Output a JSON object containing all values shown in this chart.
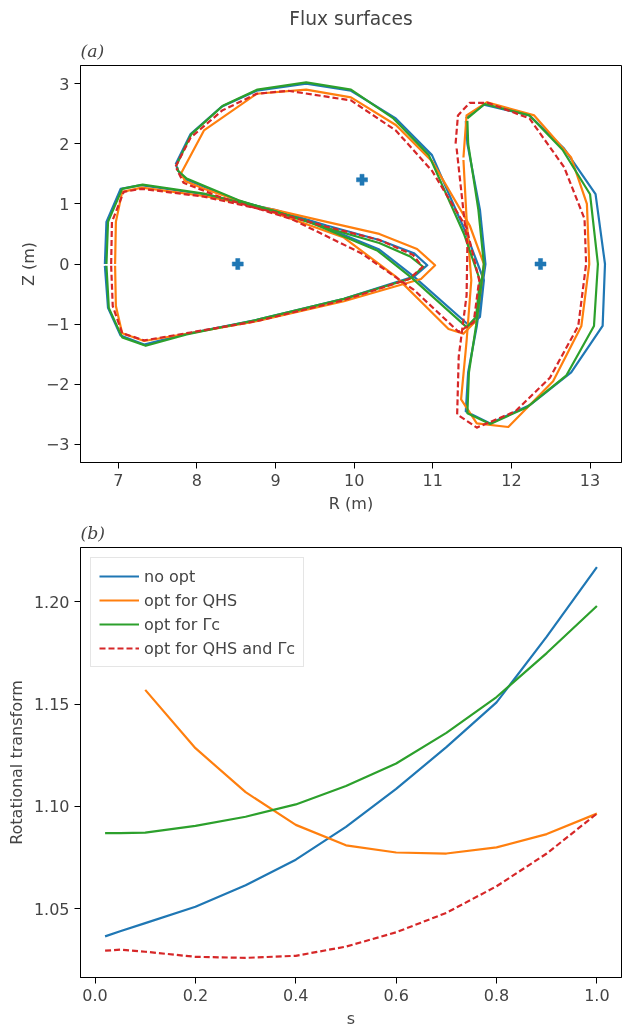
{
  "chart_data": [
    {
      "type": "line",
      "title": "Flux surfaces",
      "xlabel": "R (m)",
      "ylabel": "Z (m)",
      "annotations": [
        "(a)"
      ],
      "xlim": [
        6.52,
        13.4
      ],
      "ylim": [
        -3.3,
        3.3
      ],
      "xticks": [
        7,
        8,
        9,
        10,
        11,
        12,
        13
      ],
      "yticks": [
        -3,
        -2,
        -1,
        0,
        1,
        2,
        3
      ],
      "grid": false,
      "legend": false,
      "series": [
        {
          "color": "#1f77b4",
          "x": [
            6.83,
            6.85,
            7.03,
            7.29,
            8.09,
            8.99,
            9.65,
            10.32,
            10.76,
            10.93,
            10.76,
            9.87,
            8.76,
            7.87,
            7.33,
            7.03,
            6.87,
            6.83
          ],
          "values": [
            0,
            0.7,
            1.25,
            1.31,
            1.16,
            0.9,
            0.64,
            0.4,
            0.18,
            -0.02,
            -0.21,
            -0.58,
            -0.93,
            -1.16,
            -1.34,
            -1.19,
            -0.73,
            -0.03
          ]
        },
        {
          "color": "#1f77b4",
          "x": [
            7.73,
            7.92,
            8.32,
            8.76,
            9.39,
            9.96,
            10.53,
            10.99,
            11.43,
            11.65,
            11.6,
            11.47,
            10.76,
            10.32,
            9.43,
            8.53,
            7.87,
            7.76,
            7.74
          ],
          "values": [
            1.66,
            2.16,
            2.62,
            2.88,
            3.0,
            2.88,
            2.42,
            1.81,
            0.49,
            -0.27,
            -0.88,
            -1.03,
            -0.21,
            0.24,
            0.72,
            1.05,
            1.4,
            1.55,
            1.63
          ]
        },
        {
          "color": "#1f77b4",
          "x": [
            11.42,
            11.65,
            12.23,
            12.67,
            13.07,
            13.19,
            13.16,
            12.76,
            12.23,
            11.73,
            11.42,
            11.45,
            11.56,
            11.67,
            11.6,
            11.44,
            11.42
          ],
          "values": [
            2.42,
            2.65,
            2.47,
            1.92,
            1.16,
            0,
            -1.03,
            -1.8,
            -2.35,
            -2.65,
            -2.45,
            -1.8,
            -1.03,
            0,
            0.9,
            2.0,
            2.38
          ]
        },
        {
          "color": "#ff7f0e",
          "x": [
            6.96,
            6.97,
            7.05,
            7.3,
            8.09,
            8.99,
            9.65,
            10.32,
            10.8,
            11.03,
            10.85,
            9.87,
            8.76,
            7.87,
            7.33,
            7.05,
            6.97,
            6.96
          ],
          "values": [
            0,
            0.7,
            1.2,
            1.27,
            1.13,
            0.9,
            0.7,
            0.5,
            0.25,
            -0.02,
            -0.25,
            -0.62,
            -0.95,
            -1.16,
            -1.28,
            -1.15,
            -0.7,
            -0.03
          ]
        },
        {
          "color": "#ff7f0e",
          "x": [
            7.8,
            8.09,
            8.76,
            9.39,
            9.96,
            10.53,
            10.99,
            11.47,
            11.65,
            11.56,
            11.39,
            11.2,
            10.53,
            9.87,
            8.99,
            8.09,
            7.85,
            7.81
          ],
          "values": [
            1.51,
            2.22,
            2.83,
            2.9,
            2.77,
            2.31,
            1.71,
            0.64,
            0,
            -0.93,
            -1.16,
            -1.08,
            -0.21,
            0.44,
            0.85,
            1.25,
            1.38,
            1.48
          ]
        },
        {
          "color": "#ff7f0e",
          "x": [
            11.39,
            11.43,
            11.69,
            12.29,
            12.76,
            12.96,
            12.99,
            12.89,
            12.53,
            11.96,
            11.56,
            11.36,
            11.43,
            11.49,
            11.43,
            11.39
          ],
          "values": [
            1.77,
            2.47,
            2.69,
            2.47,
            1.77,
            1.0,
            0,
            -1.03,
            -1.95,
            -2.71,
            -2.65,
            -2.25,
            -1.28,
            -0.27,
            0.75,
            1.73
          ]
        },
        {
          "color": "#2ca02c",
          "x": [
            6.85,
            6.87,
            7.05,
            7.31,
            8.09,
            8.99,
            9.65,
            10.32,
            10.72,
            10.88,
            10.7,
            9.87,
            8.76,
            7.87,
            7.35,
            7.05,
            6.88,
            6.85
          ],
          "values": [
            0,
            0.7,
            1.25,
            1.32,
            1.17,
            0.88,
            0.6,
            0.35,
            0.12,
            -0.05,
            -0.25,
            -0.58,
            -0.93,
            -1.17,
            -1.36,
            -1.22,
            -0.73,
            -0.03
          ]
        },
        {
          "color": "#2ca02c",
          "x": [
            7.74,
            7.93,
            8.33,
            8.77,
            9.39,
            9.96,
            10.5,
            10.95,
            11.4,
            11.6,
            11.55,
            11.43,
            10.74,
            10.3,
            9.43,
            8.53,
            7.87,
            7.76,
            7.75
          ],
          "values": [
            1.64,
            2.16,
            2.63,
            2.9,
            3.02,
            2.9,
            2.42,
            1.81,
            0.49,
            -0.27,
            -0.88,
            -1.05,
            -0.24,
            0.22,
            0.7,
            1.06,
            1.42,
            1.55,
            1.61
          ]
        },
        {
          "color": "#2ca02c",
          "x": [
            11.44,
            11.66,
            12.23,
            12.65,
            13.0,
            13.1,
            13.05,
            12.7,
            12.2,
            11.73,
            11.44,
            11.46,
            11.55,
            11.65,
            11.58,
            11.45,
            11.44
          ],
          "values": [
            2.42,
            2.66,
            2.47,
            1.9,
            1.16,
            0,
            -1.03,
            -1.85,
            -2.38,
            -2.66,
            -2.48,
            -1.8,
            -1.03,
            0,
            0.9,
            2.0,
            2.38
          ]
        },
        {
          "color": "#d62728",
          "line_style": "dashed",
          "x": [
            6.91,
            6.92,
            7.07,
            7.3,
            8.09,
            8.99,
            9.65,
            10.32,
            10.75,
            10.87,
            10.7,
            9.87,
            8.76,
            7.87,
            7.33,
            7.05,
            6.93,
            6.91
          ],
          "values": [
            0,
            0.7,
            1.2,
            1.25,
            1.12,
            0.86,
            0.62,
            0.4,
            0.15,
            -0.05,
            -0.25,
            -0.6,
            -0.95,
            -1.15,
            -1.27,
            -1.15,
            -0.7,
            -0.03
          ]
        },
        {
          "color": "#d62728",
          "line_style": "dashed",
          "x": [
            7.73,
            7.92,
            8.32,
            8.76,
            9.16,
            9.96,
            10.53,
            10.99,
            11.43,
            11.59,
            11.52,
            11.33,
            10.76,
            10.09,
            9.2,
            8.32,
            7.83,
            7.74
          ],
          "values": [
            1.62,
            2.1,
            2.55,
            2.83,
            2.88,
            2.72,
            2.22,
            1.55,
            0.6,
            -0.27,
            -0.97,
            -1.13,
            -0.43,
            0.18,
            0.75,
            1.1,
            1.35,
            1.59
          ]
        },
        {
          "color": "#d62728",
          "line_style": "dashed",
          "x": [
            11.29,
            11.32,
            11.47,
            11.7,
            12.23,
            12.67,
            12.93,
            12.95,
            12.85,
            12.49,
            12.05,
            11.56,
            11.31,
            11.33,
            11.43,
            11.44,
            11.38,
            11.3
          ],
          "values": [
            2.0,
            2.47,
            2.68,
            2.68,
            2.42,
            1.61,
            0.75,
            0,
            -1.03,
            -1.89,
            -2.45,
            -2.72,
            -2.5,
            -1.54,
            -0.52,
            0.3,
            1.0,
            1.96
          ]
        },
        {
          "type": "scatter",
          "marker": "cross",
          "color": "#1f77b4",
          "x": [
            8.52,
            10.1,
            12.37
          ],
          "values": [
            0,
            1.4,
            0
          ]
        }
      ]
    },
    {
      "type": "line",
      "xlabel": "s",
      "ylabel": "Rotational transform",
      "annotations": [
        "(b)"
      ],
      "x": [
        0.02,
        0.05,
        0.1,
        0.2,
        0.3,
        0.4,
        0.5,
        0.6,
        0.7,
        0.8,
        0.9,
        1.0
      ],
      "xlim": [
        -0.029,
        1.049
      ],
      "ylim": [
        1.0164,
        1.2266
      ],
      "xticks": [
        {
          "value": 0,
          "label": "0.0"
        },
        0.2,
        0.4,
        0.6,
        0.8,
        {
          "value": 1,
          "label": "1.0"
        }
      ],
      "yticks": [
        1.05,
        {
          "value": 1.1,
          "label": "1.10"
        },
        1.15,
        {
          "value": 1.2,
          "label": "1.20"
        }
      ],
      "grid": false,
      "legend": "top left",
      "series": [
        {
          "name": "no opt",
          "color": "#1f77b4",
          "values": [
            1.0365,
            1.039,
            1.043,
            1.051,
            1.0615,
            1.074,
            1.09,
            1.1086,
            1.129,
            1.1509,
            1.183,
            1.217
          ]
        },
        {
          "name": "opt for QHS",
          "color": "#ff7f0e",
          "values": [
            null,
            null,
            1.157,
            1.1285,
            1.107,
            1.091,
            1.081,
            1.0775,
            1.077,
            1.08,
            1.0865,
            1.0965
          ]
        },
        {
          "name": "opt for Γc",
          "color": "#2ca02c",
          "values": [
            1.087,
            1.087,
            1.0872,
            1.0905,
            1.095,
            1.101,
            1.11,
            1.121,
            1.136,
            1.1535,
            1.175,
            1.198
          ]
        },
        {
          "name": "opt for QHS and Γc",
          "color": "#d62728",
          "line_style": "dashed",
          "values": [
            1.0295,
            1.03,
            1.029,
            1.0265,
            1.026,
            1.027,
            1.0315,
            1.0385,
            1.048,
            1.061,
            1.077,
            1.0965
          ]
        }
      ]
    }
  ]
}
